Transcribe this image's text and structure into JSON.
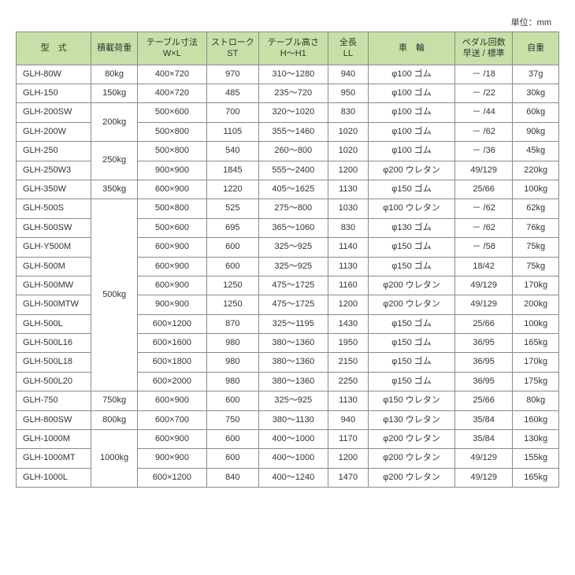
{
  "unit_label": "単位：mm",
  "headers": {
    "model": "型　式",
    "load": "積載荷重",
    "table_dim": "テーブル寸法\nW×L",
    "stroke": "ストローク\nST",
    "table_h": "テーブル高さ\nH～H1",
    "length": "全長\nLL",
    "wheel": "車　輪",
    "pedal": "ペダル回数\n早送 / 標準",
    "weight": "自重"
  },
  "rows": [
    {
      "model": "GLH-80W",
      "load": "80kg",
      "dim": "400×720",
      "st": "970",
      "h": "310～1280",
      "ll": "940",
      "wheel": "φ100 ゴム",
      "pedal": "－ /18",
      "wt": "37g"
    },
    {
      "model": "GLH-150",
      "load": "150kg",
      "dim": "400×720",
      "st": "485",
      "h": "235～720",
      "ll": "950",
      "wheel": "φ100 ゴム",
      "pedal": "－ /22",
      "wt": "30kg"
    },
    {
      "model": "GLH-200SW",
      "load": "200kg",
      "load_rowspan": 2,
      "dim": "500×600",
      "st": "700",
      "h": "320～1020",
      "ll": "830",
      "wheel": "φ100 ゴム",
      "pedal": "－ /44",
      "wt": "60kg"
    },
    {
      "model": "GLH-200W",
      "dim": "500×800",
      "st": "1105",
      "h": "355～1460",
      "ll": "1020",
      "wheel": "φ100 ゴム",
      "pedal": "－ /62",
      "wt": "90kg"
    },
    {
      "model": "GLH-250",
      "load": "250kg",
      "load_rowspan": 2,
      "dim": "500×800",
      "st": "540",
      "h": "260～800",
      "ll": "1020",
      "wheel": "φ100 ゴム",
      "pedal": "－ /36",
      "wt": "45kg"
    },
    {
      "model": "GLH-250W3",
      "dim": "900×900",
      "st": "1845",
      "h": "555～2400",
      "ll": "1200",
      "wheel": "φ200 ウレタン",
      "pedal": "49/129",
      "wt": "220kg"
    },
    {
      "model": "GLH-350W",
      "load": "350kg",
      "dim": "600×900",
      "st": "1220",
      "h": "405～1625",
      "ll": "1130",
      "wheel": "φ150 ゴム",
      "pedal": "25/66",
      "wt": "100kg"
    },
    {
      "model": "GLH-500S",
      "load": "500kg",
      "load_rowspan": 10,
      "dim": "500×800",
      "st": "525",
      "h": "275～800",
      "ll": "1030",
      "wheel": "φ100 ウレタン",
      "pedal": "－ /62",
      "wt": "62kg"
    },
    {
      "model": "GLH-500SW",
      "dim": "500×600",
      "st": "695",
      "h": "365～1060",
      "ll": "830",
      "wheel": "φ130 ゴム",
      "pedal": "－ /62",
      "wt": "76kg"
    },
    {
      "model": "GLH-Y500M",
      "dim": "600×900",
      "st": "600",
      "h": "325～925",
      "ll": "1140",
      "wheel": "φ150 ゴム",
      "pedal": "－ /58",
      "wt": "75kg"
    },
    {
      "model": "GLH-500M",
      "dim": "600×900",
      "st": "600",
      "h": "325～925",
      "ll": "1130",
      "wheel": "φ150 ゴム",
      "pedal": "18/42",
      "wt": "75kg"
    },
    {
      "model": "GLH-500MW",
      "dim": "600×900",
      "st": "1250",
      "h": "475～1725",
      "ll": "1160",
      "wheel": "φ200 ウレタン",
      "pedal": "49/129",
      "wt": "170kg"
    },
    {
      "model": "GLH-500MTW",
      "dim": "900×900",
      "st": "1250",
      "h": "475～1725",
      "ll": "1200",
      "wheel": "φ200 ウレタン",
      "pedal": "49/129",
      "wt": "200kg"
    },
    {
      "model": "GLH-500L",
      "dim": "600×1200",
      "st": "870",
      "h": "325～1195",
      "ll": "1430",
      "wheel": "φ150 ゴム",
      "pedal": "25/66",
      "wt": "100kg"
    },
    {
      "model": "GLH-500L16",
      "dim": "600×1600",
      "st": "980",
      "h": "380～1360",
      "ll": "1950",
      "wheel": "φ150 ゴム",
      "pedal": "36/95",
      "wt": "165kg"
    },
    {
      "model": "GLH-500L18",
      "dim": "600×1800",
      "st": "980",
      "h": "380～1360",
      "ll": "2150",
      "wheel": "φ150 ゴム",
      "pedal": "36/95",
      "wt": "170kg"
    },
    {
      "model": "GLH-500L20",
      "dim": "600×2000",
      "st": "980",
      "h": "380～1360",
      "ll": "2250",
      "wheel": "φ150 ゴム",
      "pedal": "36/95",
      "wt": "175kg"
    },
    {
      "model": "GLH-750",
      "load": "750kg",
      "dim": "600×900",
      "st": "600",
      "h": "325～925",
      "ll": "1130",
      "wheel": "φ150 ウレタン",
      "pedal": "25/66",
      "wt": "80kg"
    },
    {
      "model": "GLH-800SW",
      "load": "800kg",
      "dim": "600×700",
      "st": "750",
      "h": "380～1130",
      "ll": "940",
      "wheel": "φ130 ウレタン",
      "pedal": "35/84",
      "wt": "160kg"
    },
    {
      "model": "GLH-1000M",
      "load": "1000kg",
      "load_rowspan": 3,
      "dim": "600×900",
      "st": "600",
      "h": "400～1000",
      "ll": "1170",
      "wheel": "φ200 ウレタン",
      "pedal": "35/84",
      "wt": "130kg"
    },
    {
      "model": "GLH-1000MT",
      "dim": "900×900",
      "st": "600",
      "h": "400～1000",
      "ll": "1200",
      "wheel": "φ200 ウレタン",
      "pedal": "49/129",
      "wt": "155kg"
    },
    {
      "model": "GLH-1000L",
      "dim": "600×1200",
      "st": "840",
      "h": "400～1240",
      "ll": "1470",
      "wheel": "φ200 ウレタン",
      "pedal": "49/129",
      "wt": "165kg"
    }
  ],
  "colors": {
    "header_bg": "#c8e0a8",
    "border": "#8a8a8a",
    "text": "#333333"
  }
}
